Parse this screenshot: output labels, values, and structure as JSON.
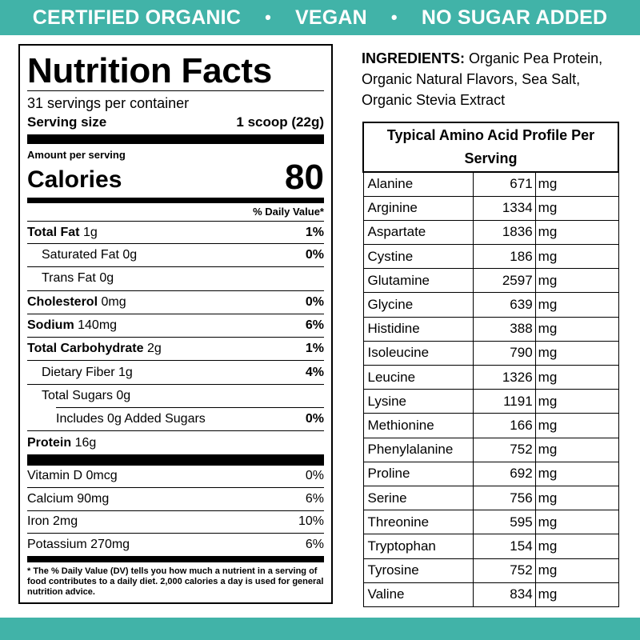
{
  "banner": {
    "items": [
      "CERTIFIED ORGANIC",
      "VEGAN",
      "NO SUGAR ADDED"
    ],
    "separator": "•",
    "color": "#41b3a8"
  },
  "nutrition": {
    "title": "Nutrition Facts",
    "servings_per_container": "31 servings per container",
    "serving_size_label": "Serving size",
    "serving_size_value": "1 scoop (22g)",
    "amount_per_serving": "Amount per serving",
    "calories_label": "Calories",
    "calories_value": "80",
    "dv_header": "% Daily Value*",
    "rows": [
      {
        "label": "Total Fat",
        "amount": "1g",
        "dv": "1%"
      },
      {
        "label": "Saturated Fat 0g",
        "dv": "0%"
      },
      {
        "label": "Trans Fat 0g",
        "dv": ""
      },
      {
        "label": "Cholesterol",
        "amount": "0mg",
        "dv": "0%"
      },
      {
        "label": "Sodium",
        "amount": "140mg",
        "dv": "6%"
      },
      {
        "label": "Total Carbohydrate",
        "amount": "2g",
        "dv": "1%"
      },
      {
        "label": "Dietary Fiber 1g",
        "dv": "4%"
      },
      {
        "label": "Total Sugars 0g",
        "dv": ""
      },
      {
        "label": "Includes 0g Added Sugars",
        "dv": "0%"
      },
      {
        "label": "Protein",
        "amount": "16g",
        "dv": ""
      }
    ],
    "vitamins": [
      {
        "label": "Vitamin D 0mcg",
        "dv": "0%"
      },
      {
        "label": "Calcium 90mg",
        "dv": "6%"
      },
      {
        "label": "Iron 2mg",
        "dv": "10%"
      },
      {
        "label": "Potassium 270mg",
        "dv": "6%"
      }
    ],
    "footnote": "* The % Daily Value (DV) tells you how much a nutrient in a serving of food contributes to a daily diet. 2,000 calories a day is used for general nutrition advice."
  },
  "ingredients": {
    "label": "INGREDIENTS:",
    "text": "Organic Pea Protein, Organic Natural Flavors, Sea Salt, Organic Stevia Extract"
  },
  "amino": {
    "title": "Typical Amino Acid Profile Per Serving",
    "rows": [
      {
        "name": "Alanine",
        "value": "671",
        "unit": "mg"
      },
      {
        "name": "Arginine",
        "value": "1334",
        "unit": "mg"
      },
      {
        "name": "Aspartate",
        "value": "1836",
        "unit": "mg"
      },
      {
        "name": "Cystine",
        "value": "186",
        "unit": "mg"
      },
      {
        "name": "Glutamine",
        "value": "2597",
        "unit": "mg"
      },
      {
        "name": "Glycine",
        "value": "639",
        "unit": "mg"
      },
      {
        "name": "Histidine",
        "value": "388",
        "unit": "mg"
      },
      {
        "name": "Isoleucine",
        "value": "790",
        "unit": "mg"
      },
      {
        "name": "Leucine",
        "value": "1326",
        "unit": "mg"
      },
      {
        "name": "Lysine",
        "value": "1191",
        "unit": "mg"
      },
      {
        "name": "Methionine",
        "value": "166",
        "unit": "mg"
      },
      {
        "name": "Phenylalanine",
        "value": "752",
        "unit": "mg"
      },
      {
        "name": "Proline",
        "value": "692",
        "unit": "mg"
      },
      {
        "name": "Serine",
        "value": "756",
        "unit": "mg"
      },
      {
        "name": "Threonine",
        "value": "595",
        "unit": "mg"
      },
      {
        "name": "Tryptophan",
        "value": "154",
        "unit": "mg"
      },
      {
        "name": "Tyrosine",
        "value": "752",
        "unit": "mg"
      },
      {
        "name": "Valine",
        "value": "834",
        "unit": "mg"
      }
    ]
  }
}
